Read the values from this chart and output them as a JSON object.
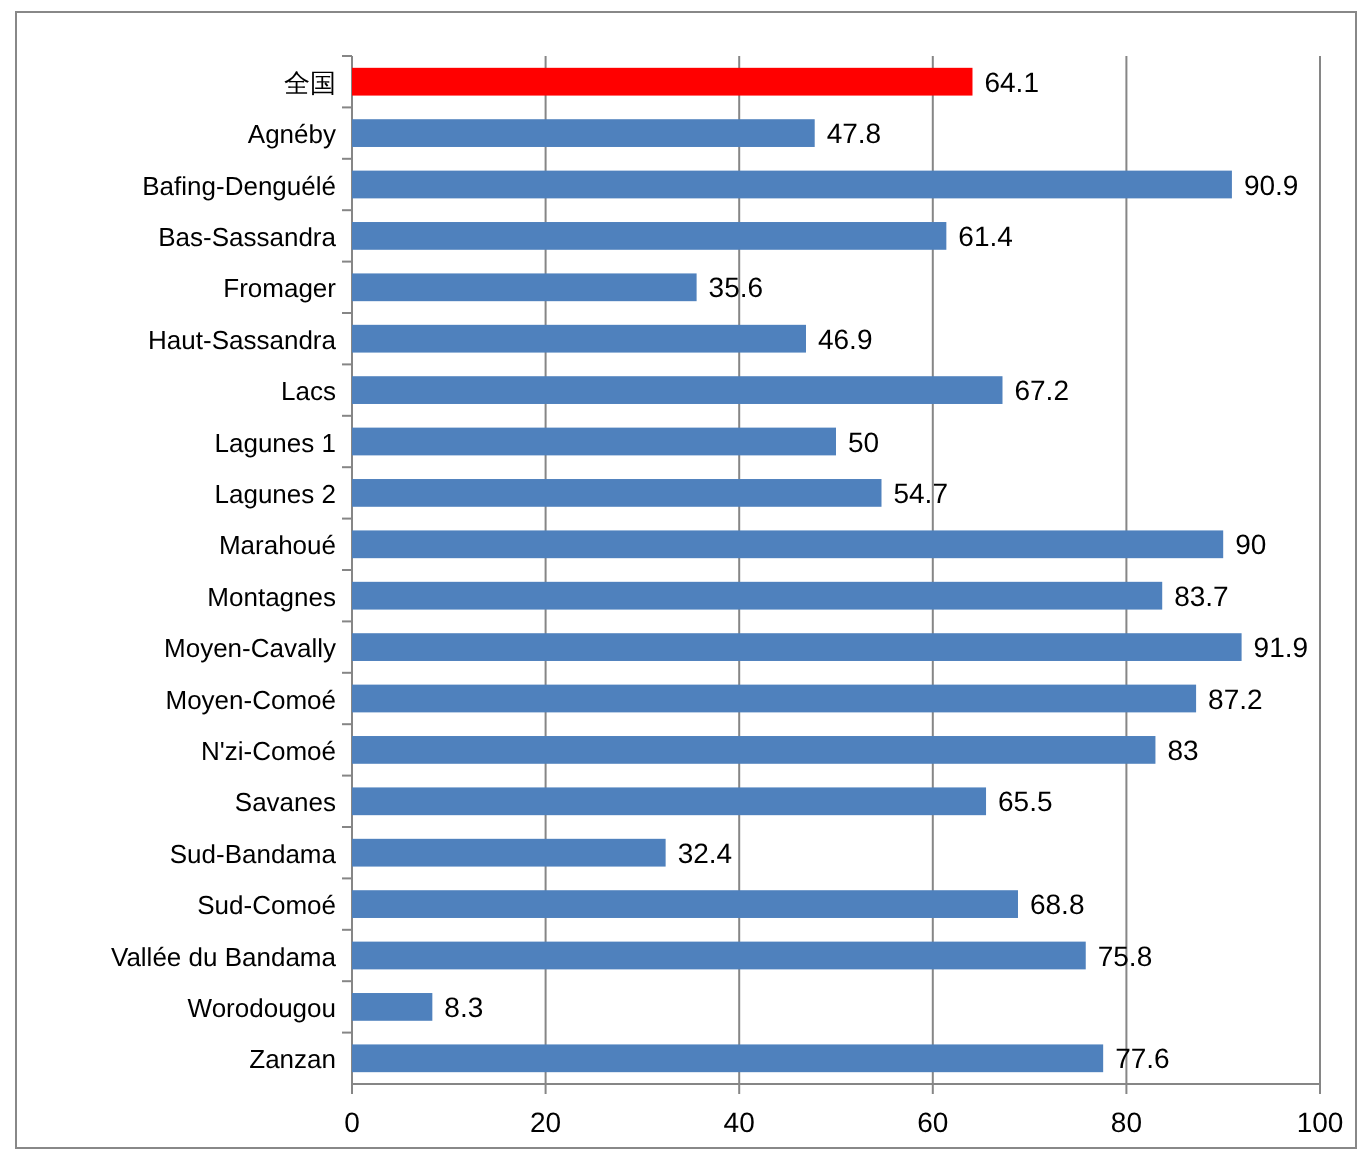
{
  "chart_data": {
    "type": "bar",
    "orientation": "horizontal",
    "categories": [
      "全国",
      "Agnéby",
      "Bafing-Denguélé",
      "Bas-Sassandra",
      "Fromager",
      "Haut-Sassandra",
      "Lacs",
      "Lagunes 1",
      "Lagunes 2",
      "Marahoué",
      "Montagnes",
      "Moyen-Cavally",
      "Moyen-Comoé",
      "N'zi-Comoé",
      "Savanes",
      "Sud-Bandama",
      "Sud-Comoé",
      "Vallée du Bandama",
      "Worodougou",
      "Zanzan"
    ],
    "values": [
      64.1,
      47.8,
      90.9,
      61.4,
      35.6,
      46.9,
      67.2,
      50,
      54.7,
      90,
      83.7,
      91.9,
      87.2,
      83,
      65.5,
      32.4,
      68.8,
      75.8,
      8.3,
      77.6
    ],
    "colors": [
      "#ff0000",
      "#4f81bd",
      "#4f81bd",
      "#4f81bd",
      "#4f81bd",
      "#4f81bd",
      "#4f81bd",
      "#4f81bd",
      "#4f81bd",
      "#4f81bd",
      "#4f81bd",
      "#4f81bd",
      "#4f81bd",
      "#4f81bd",
      "#4f81bd",
      "#4f81bd",
      "#4f81bd",
      "#4f81bd",
      "#4f81bd",
      "#4f81bd"
    ],
    "xlim": [
      0,
      100
    ],
    "xticks": [
      0,
      20,
      40,
      60,
      80,
      100
    ],
    "grid": "x",
    "data_labels": true
  }
}
